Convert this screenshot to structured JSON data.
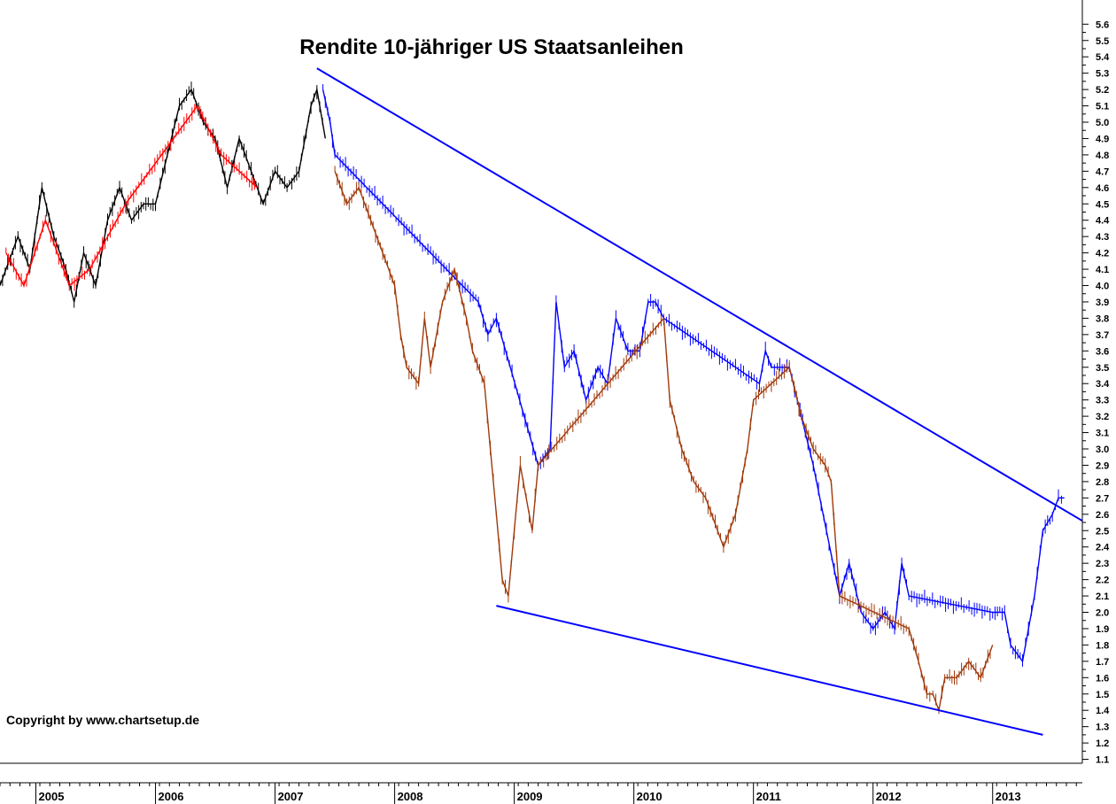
{
  "chart_data": {
    "type": "line",
    "title": "Rendite 10-jähriger US Staatsanleihen",
    "copyright": "Copyright by www.chartsetup.de",
    "xlabel": "",
    "ylabel": "",
    "x_ticks": [
      "2005",
      "2006",
      "2007",
      "2008",
      "2009",
      "2010",
      "2011",
      "2012",
      "2013"
    ],
    "y_ticks": [
      "1.1",
      "1.2",
      "1.3",
      "1.4",
      "1.5",
      "1.6",
      "1.7",
      "1.8",
      "1.9",
      "2.0",
      "2.1",
      "2.2",
      "2.3",
      "2.4",
      "2.5",
      "2.6",
      "2.7",
      "2.8",
      "2.9",
      "3.0",
      "3.1",
      "3.2",
      "3.3",
      "3.4",
      "3.5",
      "3.6",
      "3.7",
      "3.8",
      "3.9",
      "4.0",
      "4.1",
      "4.2",
      "4.3",
      "4.4",
      "4.5",
      "4.6",
      "4.7",
      "4.8",
      "4.9",
      "5.0",
      "5.1",
      "5.2",
      "5.3",
      "5.4",
      "5.5",
      "5.6"
    ],
    "xlim": [
      2004.7,
      2013.75
    ],
    "ylim": [
      1.05,
      5.65
    ],
    "grid": false,
    "y_axis_side": "right",
    "series": [
      {
        "color": "#000000",
        "x": [
          2004.7,
          2004.85,
          2004.95,
          2005.05,
          2005.15,
          2005.25,
          2005.32,
          2005.4,
          2005.5,
          2005.6,
          2005.7,
          2005.8,
          2005.9,
          2006.0,
          2006.1,
          2006.2,
          2006.3,
          2006.4,
          2006.5,
          2006.6,
          2006.7,
          2006.8,
          2006.9,
          2007.0,
          2007.1,
          2007.2,
          2007.3,
          2007.35,
          2007.42
        ],
        "y": [
          4.0,
          4.3,
          4.1,
          4.6,
          4.3,
          4.1,
          3.9,
          4.2,
          4.0,
          4.4,
          4.6,
          4.4,
          4.5,
          4.5,
          4.8,
          5.1,
          5.2,
          5.0,
          4.9,
          4.6,
          4.9,
          4.7,
          4.5,
          4.7,
          4.6,
          4.7,
          5.1,
          5.2,
          4.9
        ]
      },
      {
        "color": "#ff0000",
        "x": [
          2004.75,
          2004.9,
          2005.08,
          2005.28,
          2005.45,
          2005.75,
          2006.35,
          2006.55,
          2006.85
        ],
        "y": [
          4.2,
          4.0,
          4.4,
          4.0,
          4.1,
          4.5,
          5.1,
          4.8,
          4.6
        ]
      },
      {
        "color": "#0000ff",
        "x": [
          2007.4,
          2007.46,
          2007.5,
          2008.7,
          2008.78,
          2008.85,
          2009.2,
          2009.3,
          2009.35,
          2009.42,
          2009.5,
          2009.6,
          2009.7,
          2009.78,
          2009.85,
          2009.95,
          2010.05,
          2010.12,
          2010.18,
          2010.25,
          2011.05,
          2011.1,
          2011.15,
          2011.2,
          2011.3,
          2011.5,
          2011.72,
          2011.8,
          2011.9,
          2012.0,
          2012.1,
          2012.18,
          2012.24,
          2012.3,
          2013.0,
          2013.1,
          2013.15,
          2013.25,
          2013.3,
          2013.35,
          2013.42,
          2013.5,
          2013.55,
          2013.6
        ],
        "y": [
          5.2,
          5.0,
          4.8,
          3.9,
          3.7,
          3.8,
          2.9,
          3.0,
          3.9,
          3.5,
          3.6,
          3.3,
          3.5,
          3.4,
          3.8,
          3.6,
          3.6,
          3.9,
          3.9,
          3.8,
          3.4,
          3.6,
          3.5,
          3.5,
          3.5,
          2.9,
          2.1,
          2.3,
          2.0,
          1.9,
          2.0,
          1.9,
          2.3,
          2.1,
          2.0,
          2.0,
          1.8,
          1.7,
          1.9,
          2.1,
          2.5,
          2.6,
          2.7,
          2.7
        ]
      },
      {
        "color": "#a0390a",
        "x": [
          2007.5,
          2007.6,
          2007.7,
          2007.8,
          2007.9,
          2008.0,
          2008.05,
          2008.1,
          2008.2,
          2008.25,
          2008.3,
          2008.4,
          2008.5,
          2008.6,
          2008.65,
          2008.75,
          2008.8,
          2008.85,
          2008.9,
          2008.95,
          2009.0,
          2009.05,
          2009.1,
          2009.15,
          2009.2,
          2010.25,
          2010.3,
          2010.4,
          2010.5,
          2010.6,
          2010.7,
          2010.75,
          2010.85,
          2010.95,
          2011.0,
          2011.3,
          2011.4,
          2011.5,
          2011.6,
          2011.65,
          2011.72,
          2012.3,
          2012.38,
          2012.45,
          2012.5,
          2012.55,
          2012.6,
          2012.7,
          2012.8,
          2012.9,
          2013.0
        ],
        "y": [
          4.7,
          4.5,
          4.6,
          4.4,
          4.2,
          4.0,
          3.7,
          3.5,
          3.4,
          3.8,
          3.5,
          3.9,
          4.1,
          3.8,
          3.6,
          3.4,
          3.0,
          2.6,
          2.2,
          2.1,
          2.5,
          2.9,
          2.7,
          2.5,
          2.9,
          3.8,
          3.3,
          3.0,
          2.8,
          2.7,
          2.5,
          2.4,
          2.6,
          3.0,
          3.3,
          3.5,
          3.2,
          3.0,
          2.9,
          2.8,
          2.1,
          1.9,
          1.7,
          1.5,
          1.5,
          1.4,
          1.6,
          1.6,
          1.7,
          1.6,
          1.8
        ]
      }
    ],
    "trendlines": [
      {
        "name": "upper",
        "x": [
          2007.35,
          2013.75
        ],
        "y": [
          5.33,
          2.56
        ],
        "color": "#0000ff"
      },
      {
        "name": "lower",
        "x": [
          2008.85,
          2013.42
        ],
        "y": [
          2.04,
          1.25
        ],
        "color": "#0000ff"
      }
    ]
  }
}
